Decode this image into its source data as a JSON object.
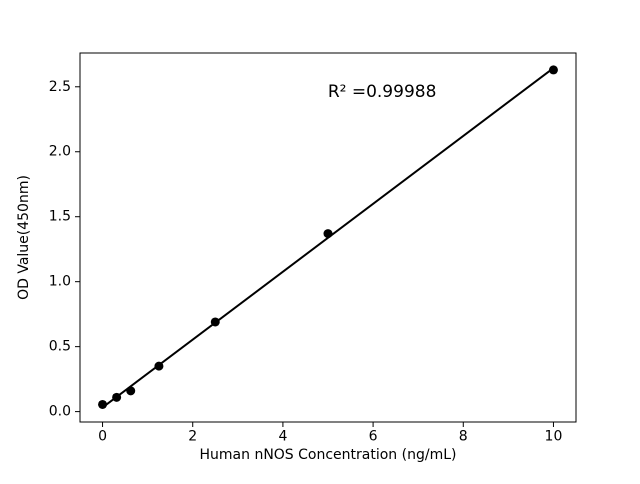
{
  "figure": {
    "background": "#ffffff",
    "foreground": "#000000"
  },
  "chart_data": {
    "type": "scatter",
    "title": "",
    "xlabel": "Human nNOS Concentration (ng/mL)",
    "ylabel": "OD Value(450nm)",
    "x": [
      0,
      0.3125,
      0.625,
      1.25,
      2.5,
      5,
      10
    ],
    "y": [
      0.055,
      0.11,
      0.16,
      0.35,
      0.69,
      1.37,
      2.63
    ],
    "xlim": [
      -0.5,
      10.5
    ],
    "ylim": [
      -0.08,
      2.76
    ],
    "xticks": [
      0,
      2,
      4,
      6,
      8,
      10
    ],
    "xtick_labels": [
      "0",
      "2",
      "4",
      "6",
      "8",
      "10"
    ],
    "yticks": [
      0.0,
      0.5,
      1.0,
      1.5,
      2.0,
      2.5
    ],
    "ytick_labels": [
      "0.0",
      "0.5",
      "1.0",
      "1.5",
      "2.0",
      "2.5"
    ],
    "annotation": {
      "text": "R² =0.99988",
      "x": 6.2,
      "y": 2.42
    },
    "line": {
      "style": "linear_fit",
      "color": "#000000",
      "width": 2
    },
    "marker": {
      "shape": "circle",
      "color": "#000000",
      "radius": 4.5
    },
    "grid": false,
    "legend": null
  }
}
